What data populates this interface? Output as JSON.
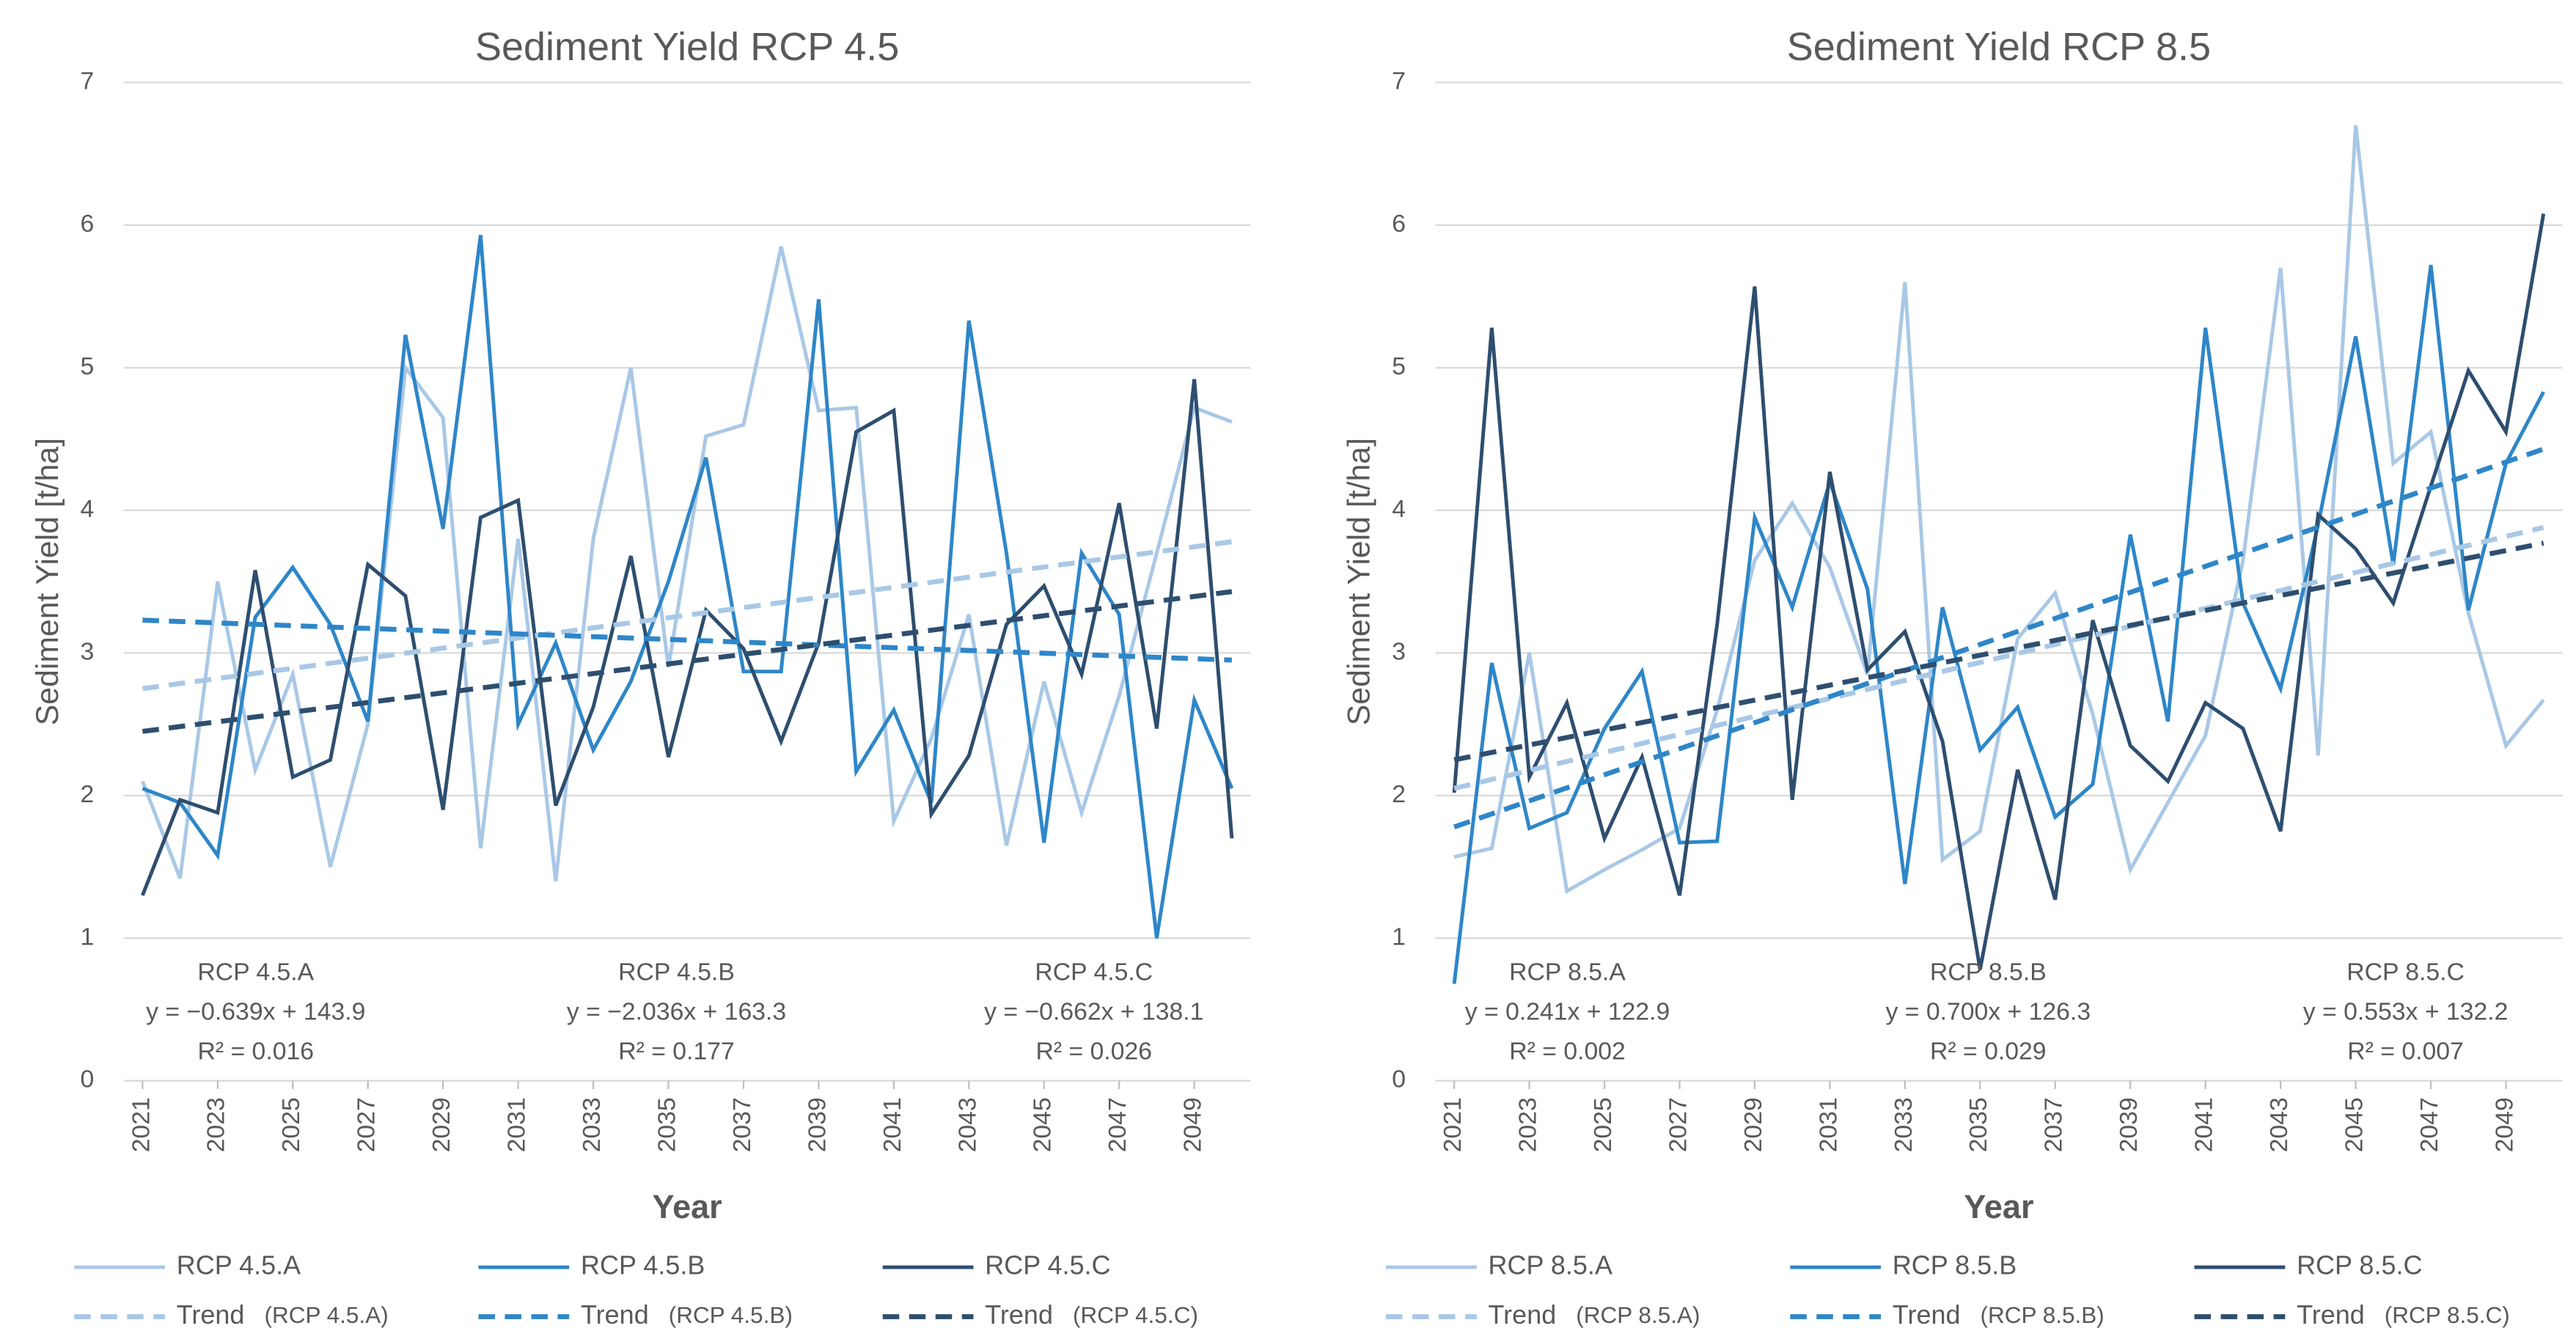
{
  "chart_data": [
    {
      "type": "line",
      "title": "Sediment Yield RCP 4.5",
      "y_label": "Sediment Yield [t/ha]",
      "x_label": "Year",
      "x": [
        2021,
        2022,
        2023,
        2024,
        2025,
        2026,
        2027,
        2028,
        2029,
        2030,
        2031,
        2032,
        2033,
        2034,
        2035,
        2036,
        2037,
        2038,
        2039,
        2040,
        2041,
        2042,
        2043,
        2044,
        2045,
        2046,
        2047,
        2048,
        2049,
        2050
      ],
      "xlim": [
        2020.5,
        2050.5
      ],
      "xticks": [
        2021,
        2023,
        2025,
        2027,
        2029,
        2031,
        2033,
        2035,
        2037,
        2039,
        2041,
        2043,
        2045,
        2047,
        2049
      ],
      "ylim": [
        0,
        7
      ],
      "yticks": [
        0,
        1,
        2,
        3,
        4,
        5,
        6,
        7
      ],
      "grid": true,
      "series": [
        {
          "name": "RCP 4.5.A",
          "color": "#a9c8e6",
          "values": [
            2.1,
            1.42,
            3.5,
            2.18,
            2.85,
            1.5,
            2.5,
            5.0,
            4.65,
            1.63,
            3.8,
            1.4,
            3.8,
            5.0,
            2.9,
            4.52,
            4.6,
            5.85,
            4.7,
            4.72,
            1.82,
            2.4,
            3.27,
            1.65,
            2.8,
            1.88,
            2.7,
            3.7,
            4.72,
            4.62
          ]
        },
        {
          "name": "RCP 4.5.B",
          "color": "#2e86c8",
          "values": [
            2.05,
            1.95,
            1.58,
            3.25,
            3.6,
            3.2,
            2.52,
            5.23,
            3.87,
            5.93,
            2.5,
            3.07,
            2.32,
            2.8,
            3.5,
            4.37,
            2.87,
            2.87,
            5.48,
            2.17,
            2.6,
            1.95,
            5.33,
            3.7,
            1.67,
            3.7,
            3.27,
            1.0,
            2.67,
            2.05
          ]
        },
        {
          "name": "RCP 4.5.C",
          "color": "#2e4e6f",
          "values": [
            1.3,
            1.97,
            1.88,
            3.58,
            2.13,
            2.25,
            3.62,
            3.4,
            1.9,
            3.95,
            4.07,
            1.93,
            2.62,
            3.68,
            2.27,
            3.3,
            3.03,
            2.38,
            3.07,
            4.55,
            4.7,
            1.87,
            2.28,
            3.2,
            3.47,
            2.85,
            4.05,
            2.47,
            4.92,
            1.7
          ]
        },
        {
          "name": "Trend",
          "legend_note": "(RCP 4.5.A)",
          "dashed": true,
          "color": "#a9c8e6",
          "x": [
            2021,
            2050
          ],
          "values": [
            2.75,
            3.78
          ]
        },
        {
          "name": "Trend",
          "legend_note": "(RCP 4.5.B)",
          "dashed": true,
          "color": "#2e86c8",
          "x": [
            2021,
            2050
          ],
          "values": [
            3.23,
            2.95
          ]
        },
        {
          "name": "Trend",
          "legend_note": "(RCP 4.5.C)",
          "dashed": true,
          "color": "#2e4e6f",
          "x": [
            2021,
            2050
          ],
          "values": [
            2.45,
            3.43
          ]
        }
      ],
      "annotations": [
        [
          "RCP 4.5.A",
          "y = −0.639x + 143.9",
          "R² = 0.016"
        ],
        [
          "RCP 4.5.B",
          "y = −2.036x + 163.3",
          "R² = 0.177"
        ],
        [
          "RCP 4.5.C",
          "y = −0.662x + 138.1",
          "R² = 0.026"
        ]
      ]
    },
    {
      "type": "line",
      "title": "Sediment Yield RCP 8.5",
      "y_label": "Sediment Yield [t/ha]",
      "x_label": "Year",
      "x": [
        2021,
        2022,
        2023,
        2024,
        2025,
        2026,
        2027,
        2028,
        2029,
        2030,
        2031,
        2032,
        2033,
        2034,
        2035,
        2036,
        2037,
        2038,
        2039,
        2040,
        2041,
        2042,
        2043,
        2044,
        2045,
        2046,
        2047,
        2048,
        2049,
        2050
      ],
      "xlim": [
        2020.5,
        2050.5
      ],
      "xticks": [
        2021,
        2023,
        2025,
        2027,
        2029,
        2031,
        2033,
        2035,
        2037,
        2039,
        2041,
        2043,
        2045,
        2047,
        2049
      ],
      "ylim": [
        0,
        7
      ],
      "yticks": [
        0,
        1,
        2,
        3,
        4,
        5,
        6,
        7
      ],
      "grid": true,
      "series": [
        {
          "name": "RCP 8.5.A",
          "color": "#a9c8e6",
          "values": [
            1.57,
            1.63,
            3.0,
            1.33,
            1.48,
            1.62,
            1.77,
            2.6,
            3.65,
            4.05,
            3.6,
            2.85,
            5.6,
            1.55,
            1.75,
            3.1,
            3.42,
            2.57,
            1.48,
            1.95,
            2.42,
            3.65,
            5.7,
            2.28,
            6.7,
            4.33,
            4.55,
            3.28,
            2.35,
            2.67
          ]
        },
        {
          "name": "RCP 8.5.B",
          "color": "#2e86c8",
          "values": [
            0.68,
            2.93,
            1.77,
            1.88,
            2.47,
            2.87,
            1.67,
            1.68,
            3.95,
            3.32,
            4.2,
            3.45,
            1.38,
            3.32,
            2.32,
            2.62,
            1.85,
            2.08,
            3.83,
            2.52,
            5.28,
            3.35,
            2.75,
            3.9,
            5.22,
            3.62,
            5.72,
            3.3,
            4.33,
            4.83
          ]
        },
        {
          "name": "RCP 8.5.C",
          "color": "#2e4e6f",
          "values": [
            2.02,
            5.28,
            2.13,
            2.65,
            1.7,
            2.27,
            1.3,
            3.2,
            5.57,
            1.97,
            4.27,
            2.88,
            3.15,
            2.38,
            0.78,
            2.18,
            1.27,
            3.23,
            2.35,
            2.1,
            2.65,
            2.47,
            1.75,
            3.97,
            3.73,
            3.35,
            4.17,
            4.98,
            4.55,
            6.08
          ]
        },
        {
          "name": "Trend",
          "legend_note": "(RCP 8.5.A)",
          "dashed": true,
          "color": "#a9c8e6",
          "x": [
            2021,
            2050
          ],
          "values": [
            2.05,
            3.88
          ]
        },
        {
          "name": "Trend",
          "legend_note": "(RCP 8.5.B)",
          "dashed": true,
          "color": "#2e86c8",
          "x": [
            2021,
            2050
          ],
          "values": [
            1.78,
            4.43
          ]
        },
        {
          "name": "Trend",
          "legend_note": "(RCP 8.5.C)",
          "dashed": true,
          "color": "#2e4e6f",
          "x": [
            2021,
            2050
          ],
          "values": [
            2.25,
            3.77
          ]
        }
      ],
      "annotations": [
        [
          "RCP 8.5.A",
          "y = 0.241x + 122.9",
          "R² = 0.002"
        ],
        [
          "RCP 8.5.B",
          "y = 0.700x + 126.3",
          "R² = 0.029"
        ],
        [
          "RCP 8.5.C",
          "y = 0.553x + 132.2",
          "R² = 0.007"
        ]
      ]
    }
  ]
}
